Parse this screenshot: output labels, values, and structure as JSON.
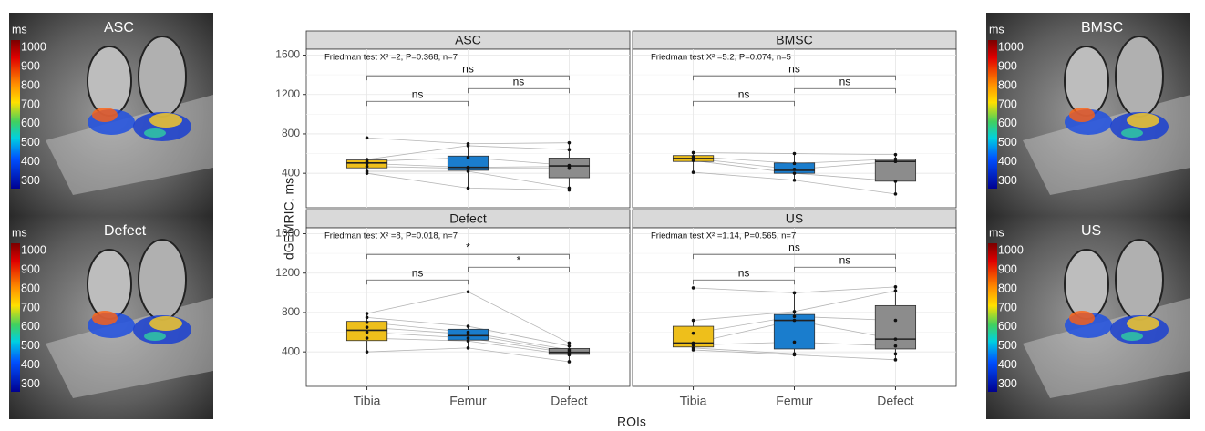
{
  "chart_data": {
    "type": "box",
    "ylabel": "dGEMRIC, ms",
    "xlabel": "ROIs",
    "categories": [
      "Tibia",
      "Femur",
      "Defect"
    ],
    "colors": [
      "#eebf1b",
      "#1a7dcd",
      "#8c8c8c"
    ],
    "ylim": [
      50,
      1660
    ],
    "yticks": [
      400,
      800,
      1200,
      1600
    ],
    "grid": true,
    "panels": [
      {
        "title": "ASC",
        "stat": "Friedman test X² =2, P=0.368, n=7",
        "boxes": [
          {
            "low": 400,
            "q1": 455,
            "median": 505,
            "q3": 535,
            "high": 545,
            "points": [
              760,
              540,
              520,
              500,
              470,
              420,
              400
            ]
          },
          {
            "low": 250,
            "q1": 430,
            "median": 460,
            "q3": 575,
            "high": 700,
            "points": [
              700,
              680,
              560,
              460,
              450,
              420,
              250
            ]
          },
          {
            "low": 230,
            "q1": 355,
            "median": 475,
            "q3": 555,
            "high": 710,
            "points": [
              710,
              640,
              480,
              470,
              450,
              250,
              230
            ]
          }
        ],
        "comparisons": [
          {
            "label": "ns",
            "y": 1130
          },
          {
            "label": "ns",
            "y": 1260
          },
          {
            "label": "ns",
            "y": 1390
          }
        ]
      },
      {
        "title": "BMSC",
        "stat": "Friedman test X² =5.2, P=0.074, n=5",
        "boxes": [
          {
            "low": 410,
            "q1": 520,
            "median": 550,
            "q3": 580,
            "high": 610,
            "points": [
              610,
              570,
              550,
              530,
              410
            ]
          },
          {
            "low": 330,
            "q1": 400,
            "median": 430,
            "q3": 505,
            "high": 600,
            "points": [
              600,
              500,
              440,
              400,
              330
            ]
          },
          {
            "low": 190,
            "q1": 320,
            "median": 520,
            "q3": 545,
            "high": 590,
            "points": [
              590,
              545,
              520,
              320,
              190
            ]
          }
        ],
        "comparisons": [
          {
            "label": "ns",
            "y": 1130
          },
          {
            "label": "ns",
            "y": 1260
          },
          {
            "label": "ns",
            "y": 1390
          }
        ]
      },
      {
        "title": "Defect",
        "stat": "Friedman test X² =8, P=0.018, n=7",
        "boxes": [
          {
            "low": 400,
            "q1": 515,
            "median": 620,
            "q3": 710,
            "high": 790,
            "points": [
              790,
              750,
              700,
              650,
              600,
              540,
              400
            ]
          },
          {
            "low": 440,
            "q1": 520,
            "median": 565,
            "q3": 630,
            "high": 660,
            "points": [
              1010,
              660,
              600,
              580,
              540,
              510,
              440
            ]
          },
          {
            "low": 300,
            "q1": 375,
            "median": 395,
            "q3": 435,
            "high": 490,
            "points": [
              490,
              460,
              420,
              400,
              390,
              370,
              300
            ]
          }
        ],
        "comparisons": [
          {
            "label": "ns",
            "y": 1130
          },
          {
            "label": "*",
            "y": 1260
          },
          {
            "label": "*",
            "y": 1390
          }
        ]
      },
      {
        "title": "US",
        "stat": "Friedman test X² =1.14, P=0.565, n=7",
        "boxes": [
          {
            "low": 420,
            "q1": 450,
            "median": 490,
            "q3": 660,
            "high": 720,
            "points": [
              1050,
              720,
              590,
              490,
              470,
              440,
              420
            ]
          },
          {
            "low": 370,
            "q1": 430,
            "median": 720,
            "q3": 780,
            "high": 1000,
            "points": [
              1000,
              810,
              760,
              720,
              500,
              380,
              370
            ]
          },
          {
            "low": 320,
            "q1": 430,
            "median": 530,
            "q3": 870,
            "high": 1060,
            "points": [
              1060,
              1020,
              720,
              530,
              460,
              380,
              320
            ]
          }
        ],
        "comparisons": [
          {
            "label": "ns",
            "y": 1130
          },
          {
            "label": "ns",
            "y": 1260
          },
          {
            "label": "ns",
            "y": 1390
          }
        ]
      }
    ]
  },
  "images": [
    {
      "label": "ASC"
    },
    {
      "label": "Defect"
    },
    {
      "label": "BMSC"
    },
    {
      "label": "US"
    }
  ],
  "colorbar": {
    "title": "ms",
    "lim": [
      260,
      1040
    ],
    "ticks": [
      1000,
      900,
      800,
      700,
      600,
      500,
      400,
      300
    ]
  }
}
